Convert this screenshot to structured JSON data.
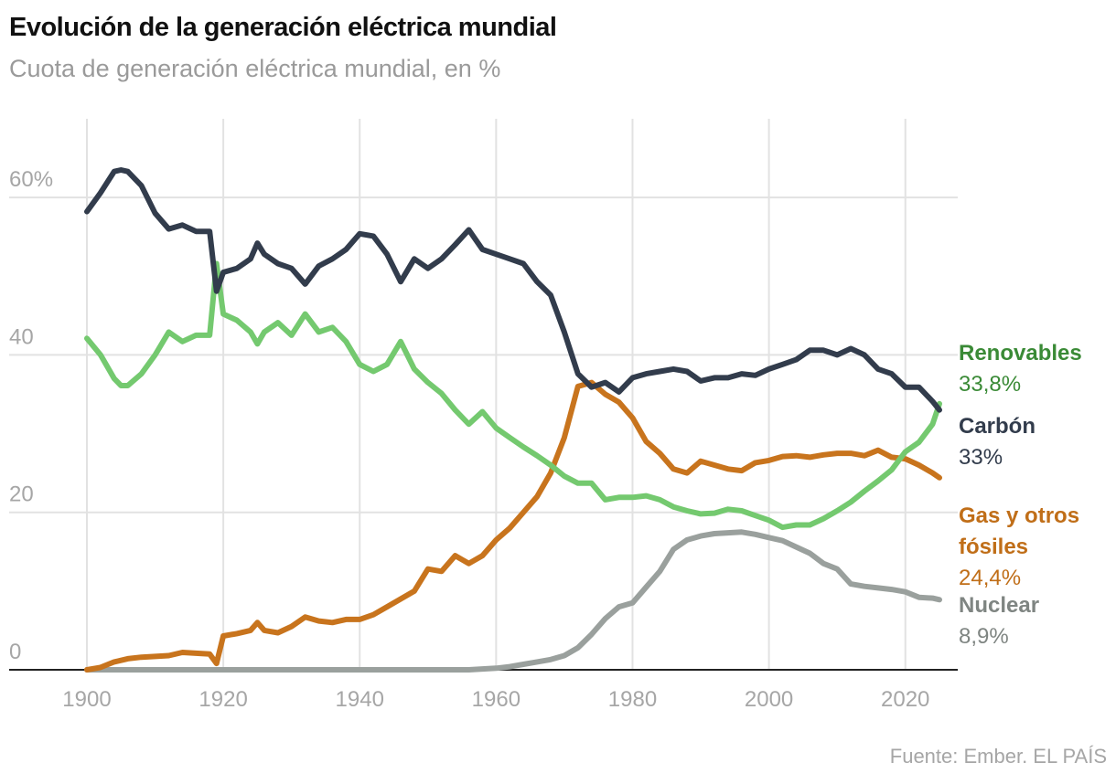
{
  "chart_data": {
    "type": "line",
    "title": "Evolución de la generación eléctrica mundial",
    "subtitle": "Cuota de generación eléctrica mundial, en %",
    "source": "Fuente: Ember. EL PAÍS",
    "x": [
      1900,
      1902,
      1904,
      1905,
      1906,
      1908,
      1910,
      1912,
      1914,
      1916,
      1918,
      1919,
      1920,
      1922,
      1924,
      1925,
      1926,
      1928,
      1930,
      1932,
      1934,
      1936,
      1938,
      1940,
      1942,
      1944,
      1946,
      1948,
      1950,
      1952,
      1954,
      1956,
      1958,
      1960,
      1962,
      1964,
      1966,
      1968,
      1970,
      1972,
      1974,
      1976,
      1978,
      1980,
      1982,
      1984,
      1986,
      1988,
      1990,
      1992,
      1994,
      1996,
      1998,
      2000,
      2002,
      2004,
      2006,
      2008,
      2010,
      2012,
      2014,
      2016,
      2018,
      2020,
      2022,
      2024,
      2025
    ],
    "xlim": [
      1900,
      2025
    ],
    "xticks": [
      1900,
      1920,
      1940,
      1960,
      1980,
      2000,
      2020
    ],
    "ylim": [
      0,
      70
    ],
    "yticks": [
      0,
      20,
      40,
      {
        "value": 60,
        "label": "60%"
      }
    ],
    "grid": true,
    "series": [
      {
        "name": "Renovables",
        "end_label": "33,8%",
        "color": "#74c96f",
        "label_color": "#3a8a36",
        "values": [
          42.1,
          40,
          37,
          36.1,
          36.1,
          37.6,
          40,
          42.9,
          41.7,
          42.5,
          42.5,
          51.6,
          45.2,
          44.4,
          42.9,
          41.4,
          42.9,
          44.1,
          42.5,
          45.2,
          42.9,
          43.5,
          41.7,
          38.8,
          37.9,
          38.8,
          41.7,
          38.2,
          36.5,
          35.1,
          33,
          31.2,
          32.8,
          30.7,
          29.5,
          28.3,
          27.2,
          26,
          24.6,
          23.7,
          23.7,
          21.6,
          21.9,
          21.9,
          22.1,
          21.6,
          20.7,
          20.2,
          19.8,
          19.9,
          20.4,
          20.2,
          19.6,
          19,
          18.1,
          18.4,
          18.4,
          19.2,
          20.2,
          21.3,
          22.7,
          24,
          25.4,
          27.7,
          28.9,
          31.2,
          33.8
        ]
      },
      {
        "name": "Carbón",
        "end_label": "33%",
        "color": "#323c4c",
        "label_color": "#323c4c",
        "values": [
          58.2,
          60.6,
          63.3,
          63.5,
          63.3,
          61.5,
          58,
          56,
          56.5,
          55.7,
          55.7,
          48.1,
          50.5,
          51,
          52.2,
          54.2,
          52.8,
          51.6,
          51,
          49,
          51.3,
          52.2,
          53.4,
          55.4,
          55.1,
          52.8,
          49.3,
          52.2,
          51,
          52.2,
          54,
          55.9,
          53.4,
          52.8,
          52.2,
          51.6,
          49.3,
          47.6,
          42.9,
          37.6,
          35.9,
          36.5,
          35.3,
          37.1,
          37.6,
          37.9,
          38.2,
          37.9,
          36.7,
          37.1,
          37.1,
          37.6,
          37.4,
          38.2,
          38.8,
          39.4,
          40.6,
          40.6,
          40,
          40.8,
          40,
          38.2,
          37.6,
          35.9,
          35.9,
          34.1,
          33
        ]
      },
      {
        "name": "Gas y otros fósiles",
        "end_label": "24,4%",
        "color": "#c8741d",
        "label_color": "#c06e18",
        "values": [
          0,
          0.3,
          1,
          1.2,
          1.4,
          1.6,
          1.7,
          1.8,
          2.2,
          2.1,
          2,
          0.8,
          4.3,
          4.6,
          5,
          6,
          5,
          4.7,
          5.5,
          6.7,
          6.2,
          6,
          6.4,
          6.4,
          7,
          8,
          9,
          10,
          12.8,
          12.5,
          14.5,
          13.5,
          14.5,
          16.5,
          18,
          20,
          22,
          25,
          29.5,
          36,
          36.5,
          35,
          34,
          32,
          29,
          27.5,
          25.5,
          25,
          26.5,
          26,
          25.5,
          25.3,
          26.3,
          26.6,
          27.1,
          27.2,
          27,
          27.3,
          27.5,
          27.5,
          27.2,
          27.9,
          27,
          26.8,
          26,
          25,
          24.4
        ]
      },
      {
        "name": "Nuclear",
        "end_label": "8,9%",
        "color": "#9aa09d",
        "label_color": "#7f8582",
        "values": [
          0,
          0,
          0,
          0,
          0,
          0,
          0,
          0,
          0,
          0,
          0,
          0,
          0,
          0,
          0,
          0,
          0,
          0,
          0,
          0,
          0,
          0,
          0,
          0,
          0,
          0,
          0,
          0,
          0,
          0,
          0,
          0,
          0.1,
          0.2,
          0.4,
          0.7,
          1,
          1.3,
          1.8,
          2.8,
          4.5,
          6.5,
          8,
          8.5,
          10.5,
          12.5,
          15.3,
          16.5,
          17,
          17.3,
          17.4,
          17.5,
          17.2,
          16.8,
          16.4,
          15.6,
          14.8,
          13.5,
          12.8,
          10.9,
          10.6,
          10.4,
          10.2,
          9.9,
          9.2,
          9.1,
          8.9
        ]
      }
    ]
  }
}
